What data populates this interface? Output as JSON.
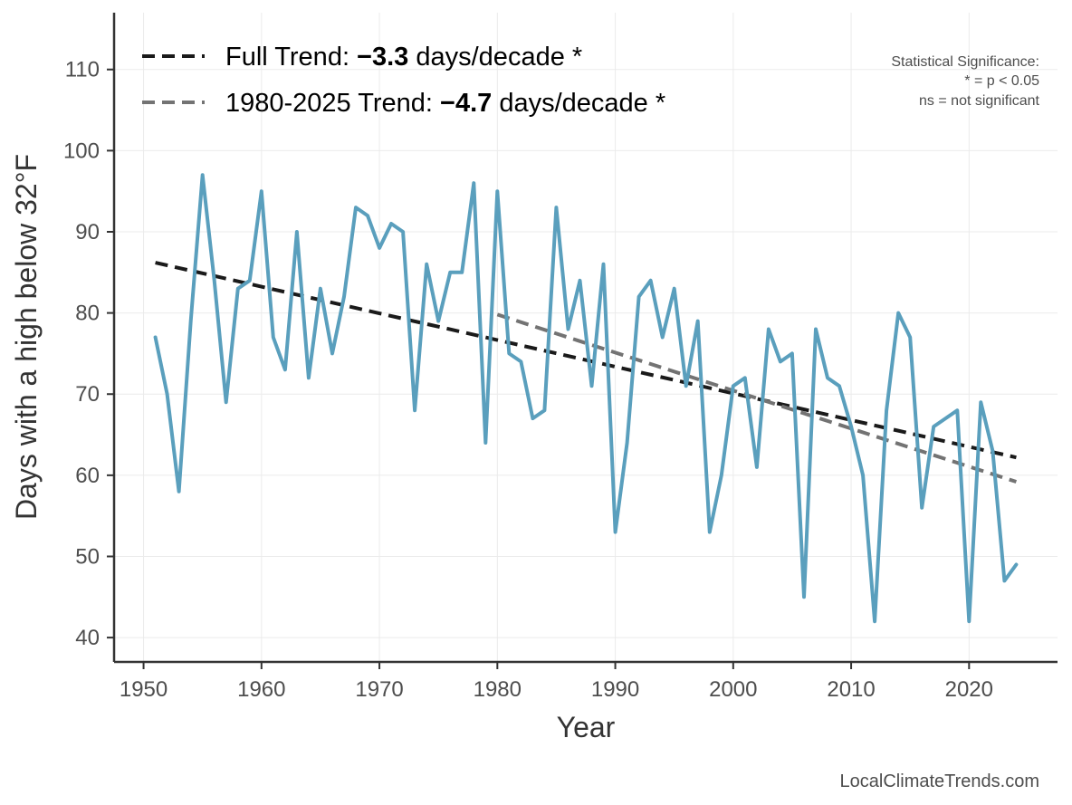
{
  "chart_data": {
    "type": "line",
    "xlabel": "Year",
    "ylabel": "Days with a high below 32°F",
    "xlim": [
      1947.5,
      2027.5
    ],
    "ylim": [
      37,
      117
    ],
    "x_ticks": [
      1950,
      1960,
      1970,
      1980,
      1990,
      2000,
      2010,
      2020
    ],
    "y_ticks": [
      40,
      50,
      60,
      70,
      80,
      90,
      100,
      110
    ],
    "grid": true,
    "series": [
      {
        "color": "#5a9fbd",
        "x": [
          1951,
          1952,
          1953,
          1954,
          1955,
          1956,
          1957,
          1958,
          1959,
          1960,
          1961,
          1962,
          1963,
          1964,
          1965,
          1966,
          1967,
          1968,
          1969,
          1970,
          1971,
          1972,
          1973,
          1974,
          1975,
          1976,
          1977,
          1978,
          1979,
          1980,
          1981,
          1982,
          1983,
          1984,
          1985,
          1986,
          1987,
          1988,
          1989,
          1990,
          1991,
          1992,
          1993,
          1994,
          1995,
          1996,
          1997,
          1998,
          1999,
          2000,
          2001,
          2002,
          2003,
          2004,
          2005,
          2006,
          2007,
          2008,
          2009,
          2010,
          2011,
          2012,
          2013,
          2014,
          2015,
          2016,
          2017,
          2018,
          2019,
          2020,
          2021,
          2022,
          2023,
          2024
        ],
        "values": [
          77,
          70,
          58,
          79,
          97,
          84,
          69,
          83,
          84,
          95,
          77,
          73,
          90,
          72,
          83,
          75,
          82,
          93,
          92,
          88,
          91,
          90,
          68,
          86,
          79,
          85,
          85,
          96,
          64,
          95,
          75,
          74,
          67,
          68,
          93,
          78,
          84,
          71,
          86,
          53,
          64,
          82,
          84,
          77,
          83,
          71,
          79,
          53,
          60,
          71,
          72,
          61,
          78,
          74,
          75,
          45,
          78,
          72,
          71,
          66,
          60,
          42,
          68,
          80,
          77,
          56,
          66,
          67,
          68,
          42,
          69,
          63,
          47,
          49
        ]
      }
    ],
    "trends": [
      {
        "color": "#1a1a1a",
        "x": [
          1951,
          2024
        ],
        "values": [
          86.2,
          62.2
        ],
        "legend_prefix": "Full Trend: ",
        "legend_value": "−3.3",
        "legend_suffix": " days/decade *"
      },
      {
        "color": "#737373",
        "x": [
          1980,
          2024
        ],
        "values": [
          79.8,
          59.2
        ],
        "legend_prefix": "1980-2025 Trend: ",
        "legend_value": "−4.7",
        "legend_suffix": " days/decade *"
      }
    ],
    "legend_position": "top-left",
    "significance_note": [
      "Statistical Significance:",
      "* = p < 0.05",
      "ns = not significant"
    ]
  },
  "credit": "LocalClimateTrends.com"
}
